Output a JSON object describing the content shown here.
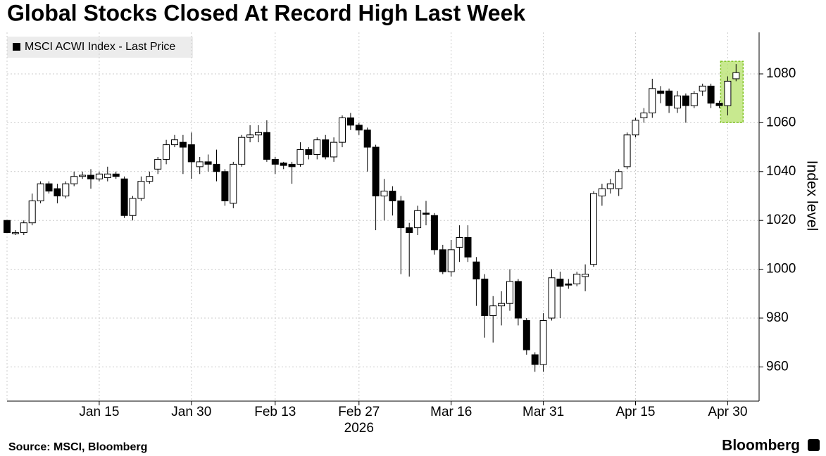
{
  "chart_data": {
    "type": "candlestick",
    "title": "Global Stocks Closed At Record High Last Week",
    "source": "Source: MSCI, Bloomberg",
    "brand": "Bloomberg",
    "y_label": "Index level",
    "year_label": "2026",
    "categories": [
      null,
      null,
      null,
      null,
      null,
      null,
      null,
      null,
      null,
      null,
      null,
      "Jan 15",
      null,
      null,
      null,
      null,
      null,
      null,
      null,
      null,
      null,
      null,
      "Jan 30",
      null,
      null,
      null,
      null,
      null,
      null,
      null,
      null,
      null,
      "Feb 13",
      null,
      null,
      null,
      null,
      null,
      null,
      null,
      null,
      null,
      "Feb 27",
      null,
      null,
      null,
      null,
      null,
      null,
      null,
      null,
      null,
      null,
      "Mar 16",
      null,
      null,
      null,
      null,
      null,
      null,
      null,
      null,
      null,
      null,
      "Mar 31",
      null,
      null,
      null,
      null,
      null,
      null,
      null,
      null,
      null,
      null,
      "Apr 15",
      null,
      null,
      null,
      null,
      null,
      null,
      null,
      null,
      null,
      null,
      "Apr 30",
      null
    ],
    "series": [
      {
        "name": "MSCI ACWI Index - Last Price",
        "open": [
          1020,
          1015,
          1015,
          1019,
          1028,
          1035,
          1033,
          1030,
          1035,
          1038,
          1038.5,
          1037,
          1037.5,
          1039,
          1037,
          1022,
          1029,
          1036,
          1041,
          1045,
          1051,
          1052,
          1051,
          1042,
          1044,
          1043,
          1040,
          1027,
          1043,
          1054,
          1055,
          1056,
          1045,
          1043.5,
          1043,
          1043,
          1049,
          1047,
          1053,
          1046,
          1052,
          1062,
          1059,
          1057,
          1050,
          1030,
          1032,
          1028,
          1017,
          1017,
          1023,
          1022,
          1008,
          999,
          1009,
          1013,
          1003,
          996,
          981,
          985,
          986,
          995,
          979,
          965,
          961,
          980,
          996,
          994,
          994,
          997,
          1002,
          1030,
          1033,
          1033,
          1042,
          1055,
          1062,
          1064,
          1073,
          1073,
          1066,
          1071,
          1067,
          1073,
          1075,
          1068,
          1067,
          1078
        ],
        "high": [
          1020,
          1016,
          1020,
          1031,
          1036,
          1036,
          1035,
          1036,
          1040,
          1040,
          1041,
          1040,
          1042,
          1040,
          1038,
          1030,
          1038,
          1040,
          1046,
          1053,
          1055,
          1055,
          1056,
          1046,
          1047,
          1049,
          1041,
          1044,
          1055,
          1059,
          1059,
          1061,
          1046,
          1044,
          1044,
          1052,
          1050,
          1054,
          1055,
          1054,
          1063,
          1064,
          1060,
          1058,
          1051,
          1037,
          1034,
          1030,
          1019,
          1026,
          1028,
          1023,
          1010,
          1012,
          1018,
          1018,
          1005,
          998,
          989,
          991,
          1000,
          996,
          980,
          966,
          982,
          1000,
          999,
          996,
          999,
          1002,
          1032,
          1035,
          1037,
          1041,
          1056,
          1062,
          1066,
          1078,
          1075,
          1074,
          1073,
          1072,
          1073,
          1076,
          1076,
          1069,
          1079,
          1084
        ],
        "low": [
          1015,
          1014,
          1014,
          1018,
          1027,
          1031,
          1027,
          1029,
          1034,
          1037,
          1033,
          1036,
          1036,
          1037,
          1021,
          1020,
          1028,
          1035,
          1039,
          1043,
          1050,
          1039,
          1037,
          1039,
          1040,
          1036,
          1026,
          1025,
          1042,
          1052,
          1052,
          1044,
          1039,
          1041,
          1035,
          1042,
          1045,
          1045,
          1045,
          1044,
          1050,
          1057,
          1055,
          1040,
          1016,
          1020,
          1022,
          998,
          997,
          1014,
          1018,
          1006,
          998,
          997,
          1003,
          1003,
          985,
          972,
          970,
          977,
          983,
          977,
          965,
          958,
          958,
          979,
          980,
          992,
          993,
          991,
          1001,
          1026,
          1031,
          1030,
          1041,
          1054,
          1060,
          1062,
          1068,
          1064,
          1064,
          1060,
          1066,
          1071,
          1066,
          1066,
          1063,
          1077
        ],
        "close": [
          1015,
          1015,
          1019,
          1028,
          1035,
          1032,
          1030,
          1035,
          1038,
          1038.5,
          1037,
          1039,
          1039,
          1038,
          1022,
          1029,
          1036,
          1038,
          1045,
          1051,
          1053,
          1050,
          1044,
          1044,
          1043,
          1040,
          1028,
          1043,
          1054,
          1055,
          1056,
          1045,
          1043,
          1042.5,
          1042,
          1049,
          1047,
          1053,
          1046,
          1052,
          1062,
          1059,
          1057,
          1050,
          1030,
          1032,
          1028,
          1017,
          1015,
          1024,
          1022.5,
          1008,
          999,
          1008,
          1013,
          1005,
          996,
          981,
          985,
          986,
          995,
          980,
          967,
          961,
          979,
          996.5,
          993,
          993.5,
          998,
          998,
          1031,
          1033,
          1035,
          1040,
          1055,
          1061,
          1064,
          1074,
          1072,
          1067,
          1071,
          1067,
          1072,
          1075,
          1068,
          1067,
          1077,
          1080.5
        ]
      }
    ],
    "up_color": "#ffffff",
    "down_color": "#000000",
    "ylim": [
      946,
      1097
    ],
    "yticks": [
      960,
      980,
      1000,
      1020,
      1040,
      1060,
      1080
    ],
    "grid": true
  }
}
